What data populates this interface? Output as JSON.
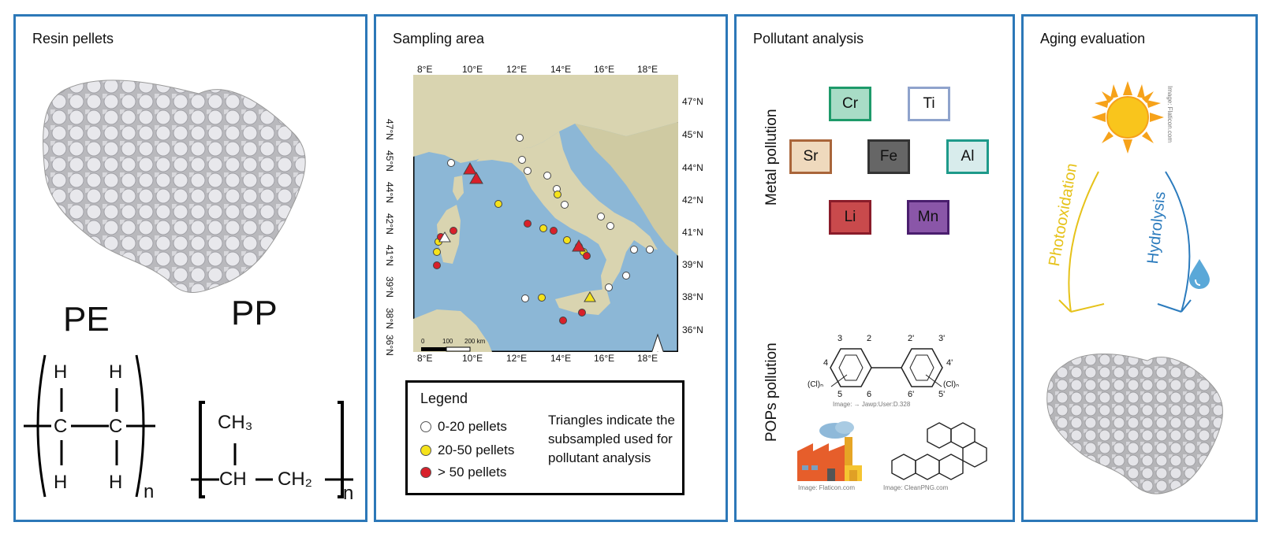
{
  "colors": {
    "panel_border": "#2c78b8",
    "sea": "#8cb7d6",
    "land": "#d9d4b0",
    "dot_white": "#ffffff",
    "dot_yellow": "#f5e21a",
    "dot_red": "#d8202a"
  },
  "panel1": {
    "title": "Resin pellets",
    "pe_label": "PE",
    "pp_label": "PP",
    "pe_atoms": {
      "h": "H",
      "c": "C",
      "n": "n"
    },
    "pp_atoms": {
      "ch3": "CH₃",
      "ch": "CH",
      "ch2": "CH₂",
      "n": "n"
    }
  },
  "panel2": {
    "title": "Sampling area",
    "lon_labels": [
      "8°E",
      "10°E",
      "12°E",
      "14°E",
      "16°E",
      "18°E"
    ],
    "lat_labels_right": [
      "47°N",
      "45°N",
      "44°N",
      "42°N",
      "41°N",
      "39°N",
      "38°N",
      "36°N"
    ],
    "lat_labels_left": [
      "47°N",
      "45°N",
      "44°N",
      "42°N",
      "41°N",
      "39°N",
      "38°N",
      "36°N"
    ],
    "scale": {
      "zero": "0",
      "mid": "100",
      "end": "200 km"
    },
    "legend": {
      "title": "Legend",
      "items": [
        {
          "label": "0-20 pellets",
          "color": "#ffffff"
        },
        {
          "label": "20-50 pellets",
          "color": "#f5e21a"
        },
        {
          "label": "> 50 pellets",
          "color": "#d8202a"
        }
      ],
      "note": "Triangles indicate the subsampled used for pollutant analysis"
    }
  },
  "panel3": {
    "title": "Pollutant analysis",
    "metal_label": "Metal pollution",
    "pops_label": "POPs pollution",
    "metals": [
      {
        "symbol": "Cr",
        "border": "#1e9a6a",
        "fill": "#a8dcc6"
      },
      {
        "symbol": "Ti",
        "border": "#8fa3cc",
        "fill": "#ffffff"
      },
      {
        "symbol": "Sr",
        "border": "#a9653a",
        "fill": "#efd9bd"
      },
      {
        "symbol": "Fe",
        "border": "#333333",
        "fill": "#666666"
      },
      {
        "symbol": "Al",
        "border": "#1e9a8a",
        "fill": "#d8ecec"
      },
      {
        "symbol": "Li",
        "border": "#8a1c2a",
        "fill": "#c94a4c"
      },
      {
        "symbol": "Mn",
        "border": "#4a1e6e",
        "fill": "#8a56a8"
      }
    ],
    "pcb_positions": {
      "p3": "3",
      "p2": "2",
      "p2p": "2'",
      "p3p": "3'",
      "p4": "4",
      "p4p": "4'",
      "p5": "5",
      "p6": "6",
      "p6p": "6'",
      "p5p": "5'",
      "cl_left": "(Cl)ₙ",
      "cl_right": "(Cl)ₙ"
    },
    "credit_pcb": "Image: → Jawp:User:D.328",
    "credit_factory": "Image: Flaticon.com",
    "credit_pah": "Image: CleanPNG.com"
  },
  "panel4": {
    "title": "Aging evaluation",
    "photo_label": "Photooxidation",
    "hydro_label": "Hydrolysis",
    "photo_color": "#e6c21a",
    "hydro_color": "#2b7bbd",
    "credit_sun": "Image: Flaticon.com"
  }
}
